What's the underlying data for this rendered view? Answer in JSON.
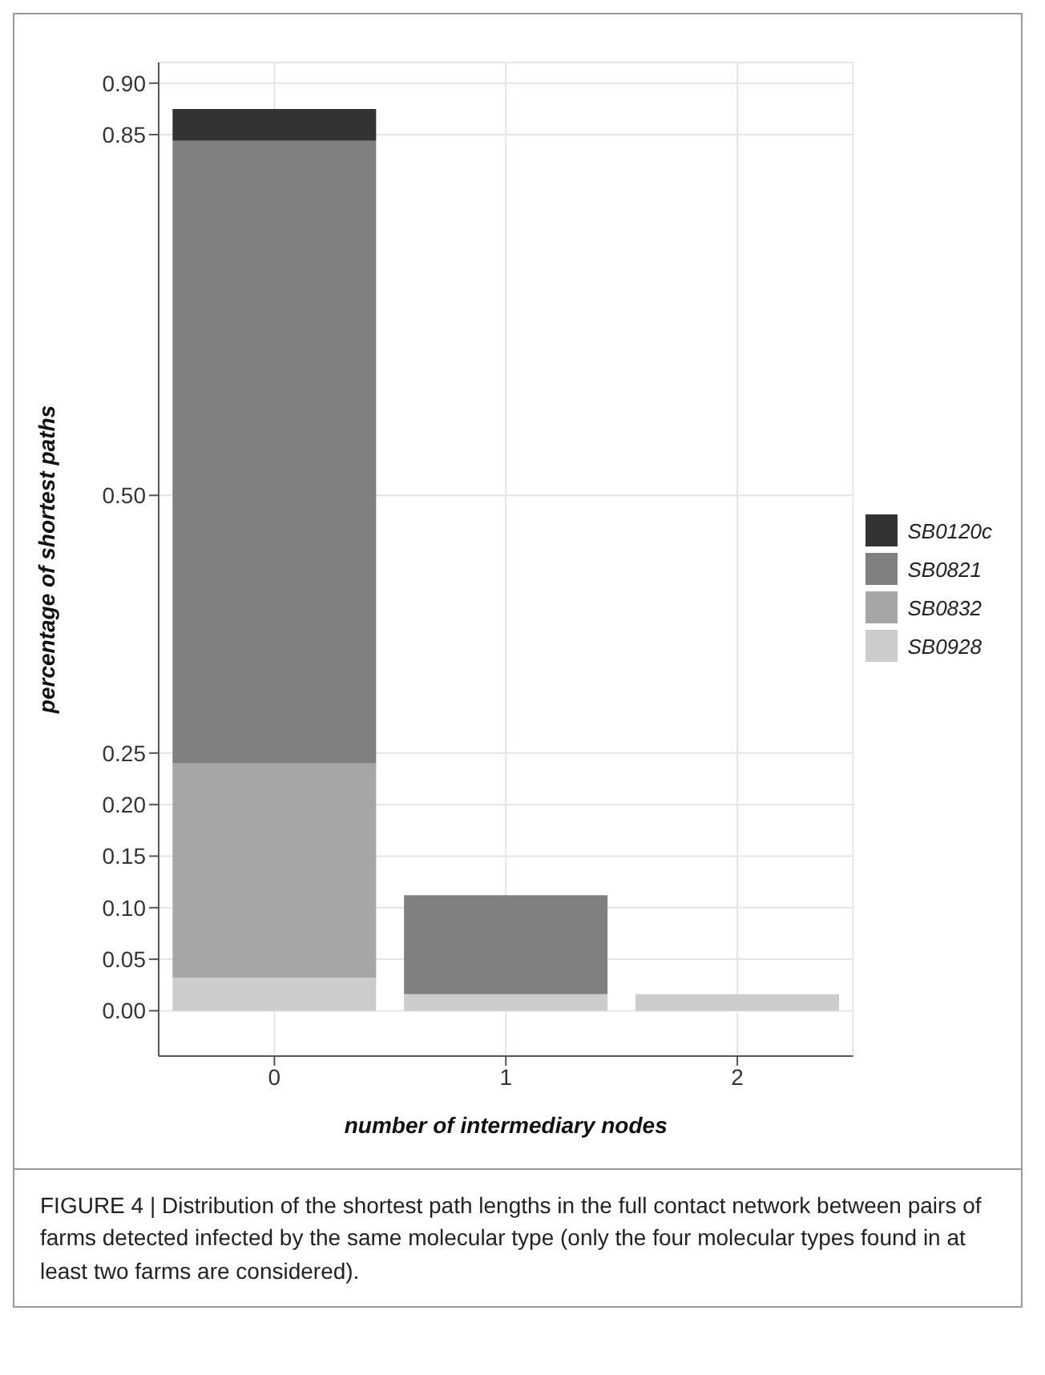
{
  "chart_data": {
    "type": "bar",
    "stacked": true,
    "categories": [
      "0",
      "1",
      "2"
    ],
    "xlabel": "number of intermediary nodes",
    "ylabel": "percentage of shortest paths",
    "series": [
      {
        "name": "SB0928",
        "color": "#cccccc",
        "values": [
          0.032,
          0.016,
          0.016
        ]
      },
      {
        "name": "SB0832",
        "color": "#a6a6a6",
        "values": [
          0.208,
          null,
          null
        ]
      },
      {
        "name": "SB0821",
        "color": "#808080",
        "values": [
          0.604,
          0.096,
          null
        ]
      },
      {
        "name": "SB0120c",
        "color": "#333333",
        "values": [
          0.031,
          null,
          null
        ]
      }
    ],
    "ylim": [
      -0.044,
      0.92
    ],
    "yticks": [
      {
        "value": 0,
        "label": "0.00"
      },
      0.05,
      {
        "value": 0.1,
        "label": "0.10"
      },
      0.15,
      {
        "value": 0.2,
        "label": "0.20"
      },
      0.25,
      {
        "value": 0.5,
        "label": "0.50"
      },
      0.85,
      {
        "value": 0.9,
        "label": "0.90"
      }
    ],
    "grid": true,
    "legend": "right",
    "annotations": [
      "FIGURE 4 | Distribution of the shortest path lengths in the full contact network between pairs of farms detected infected by the same molecular type (only the four molecular types found in at least two farms are considered)."
    ]
  }
}
